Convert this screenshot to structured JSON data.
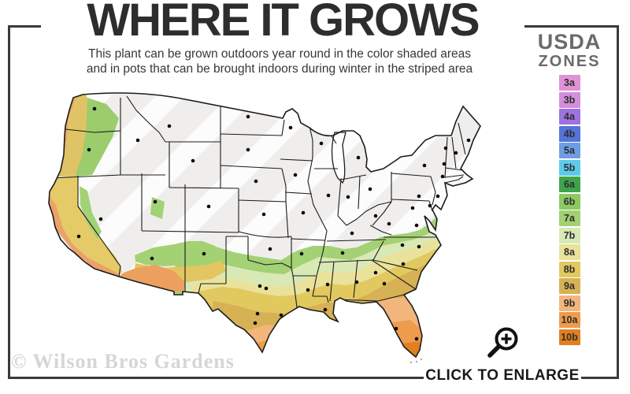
{
  "header": {
    "title": "WHERE IT GROWS",
    "subtitle_line1": "This plant can be grown outdoors year round in the color shaded areas",
    "subtitle_line2": "and in pots that can be brought indoors during winter in the striped area"
  },
  "legend": {
    "title_line1": "USDA",
    "title_line2": "ZONES",
    "zones": [
      {
        "label": "3a",
        "color": "#e192d7"
      },
      {
        "label": "3b",
        "color": "#d18fdc"
      },
      {
        "label": "4a",
        "color": "#9e72e0"
      },
      {
        "label": "4b",
        "color": "#5573d9"
      },
      {
        "label": "5a",
        "color": "#6f9de5"
      },
      {
        "label": "5b",
        "color": "#5ecae9"
      },
      {
        "label": "6a",
        "color": "#3fa34a"
      },
      {
        "label": "6b",
        "color": "#8cc962"
      },
      {
        "label": "7a",
        "color": "#a1d173"
      },
      {
        "label": "7b",
        "color": "#d8e9b5"
      },
      {
        "label": "8a",
        "color": "#eae29a"
      },
      {
        "label": "8b",
        "color": "#e2c95f"
      },
      {
        "label": "9a",
        "color": "#d7b155"
      },
      {
        "label": "9b",
        "color": "#f2b67d"
      },
      {
        "label": "10a",
        "color": "#ee9b4d"
      },
      {
        "label": "10b",
        "color": "#e0801f"
      }
    ]
  },
  "map": {
    "base_color": "#efeeec",
    "stripe_color": "#ffffff",
    "outline_color": "#1c1c1c",
    "frame_color": "#3a3a3a"
  },
  "footer": {
    "watermark": "© Wilson Bros Gardens",
    "enlarge_label": "CLICK TO ENLARGE",
    "magnifier_icon": "magnifying-glass-plus"
  }
}
